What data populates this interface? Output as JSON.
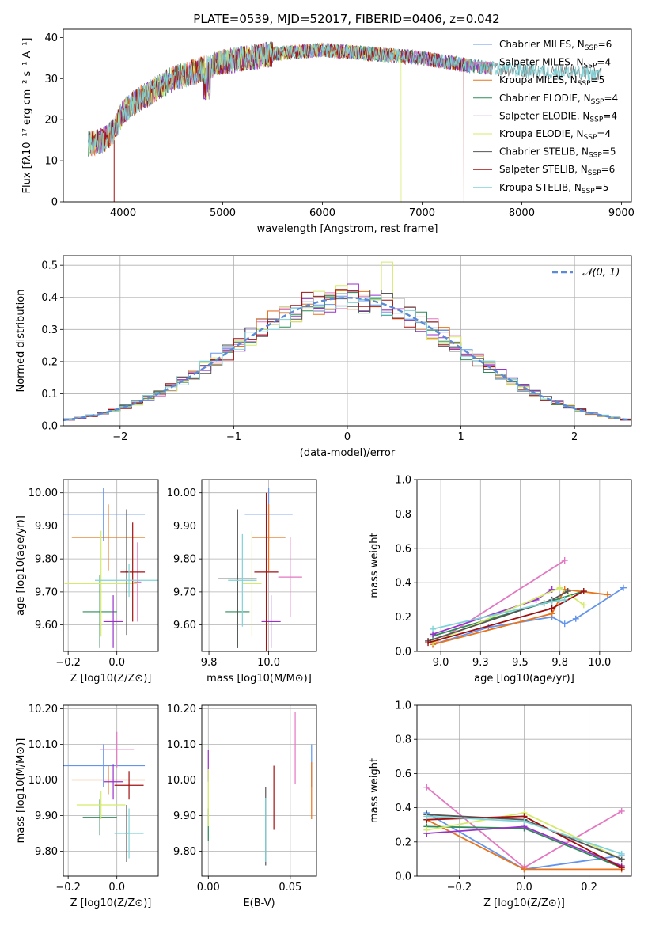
{
  "title": "PLATE=0539, MJD=52017, FIBERID=0406, z=0.042",
  "series_colors": [
    "#6495ed",
    "#e377c2",
    "#e8741c",
    "#2e8b57",
    "#9932cc",
    "#d4ea6b",
    "#555555",
    "#a01010",
    "#7fd3d8"
  ],
  "chart_data": [
    {
      "type": "line",
      "panel": "spectrum",
      "xlabel": "wavelength [Angstrom, rest frame]",
      "ylabel": "Flux [fλ10⁻¹⁷ erg cm⁻² s⁻¹ A⁻¹]",
      "xlim": [
        3400,
        9100
      ],
      "ylim": [
        0,
        42
      ],
      "xticks": [
        4000,
        5000,
        6000,
        7000,
        8000,
        9000
      ],
      "yticks": [
        0,
        10,
        20,
        30,
        40
      ],
      "continuum": {
        "x": [
          3650,
          3800,
          3900,
          4000,
          4100,
          4300,
          4500,
          4700,
          5000,
          5500,
          6000,
          6500,
          7000,
          7500,
          8000,
          8500,
          8800
        ],
        "y": [
          14,
          15,
          17,
          22,
          24,
          27,
          30,
          31.5,
          34,
          36,
          37,
          36,
          35,
          33,
          32,
          31.5,
          31
        ]
      },
      "drops": [
        {
          "series": 5,
          "x": 6790
        },
        {
          "series": 7,
          "x": 7420
        },
        {
          "series": 7,
          "x": 3910
        }
      ],
      "legend": [
        "Chabrier MILES, N_SSP=6",
        "Salpeter MILES, N_SSP=4",
        "Kroupa MILES, N_SSP=5",
        "Chabrier ELODIE, N_SSP=4",
        "Salpeter ELODIE, N_SSP=4",
        "Kroupa ELODIE, N_SSP=4",
        "Chabrier STELIB, N_SSP=5",
        "Salpeter STELIB, N_SSP=6",
        "Kroupa STELIB, N_SSP=5"
      ]
    },
    {
      "type": "histogram",
      "panel": "residuals",
      "xlabel": "(data-model)/error",
      "ylabel": "Normed distribution",
      "xlim": [
        -2.5,
        2.5
      ],
      "ylim": [
        0,
        0.53
      ],
      "xticks": [
        -2,
        -1,
        0,
        1,
        2
      ],
      "yticks": [
        0.0,
        0.1,
        0.2,
        0.3,
        0.4,
        0.5
      ],
      "bin_width": 0.1,
      "legend": [
        "𝒩(0, 1)"
      ],
      "gaussian": {
        "mean": 0,
        "sigma": 1
      }
    },
    {
      "type": "errorbar",
      "panel": "age-vs-Z",
      "xlabel": "Z [log10(Z/Z⊙)]",
      "ylabel": "age  [log10(age/yr)]",
      "xlim": [
        -0.22,
        0.17
      ],
      "ylim": [
        9.52,
        10.04
      ],
      "xticks": [
        -0.2,
        0.0
      ],
      "yticks": [
        9.6,
        9.7,
        9.8,
        9.9,
        10.0
      ],
      "points": [
        {
          "x": -0.055,
          "xerr": 0.17,
          "y": 9.935,
          "yerr": 0.08
        },
        {
          "x": 0.085,
          "xerr": 0.015,
          "y": 9.73,
          "yerr": 0.12
        },
        {
          "x": -0.035,
          "xerr": 0.15,
          "y": 9.865,
          "yerr": 0.1
        },
        {
          "x": -0.07,
          "xerr": 0.07,
          "y": 9.64,
          "yerr": 0.11
        },
        {
          "x": -0.015,
          "xerr": 0.04,
          "y": 9.61,
          "yerr": 0.08
        },
        {
          "x": -0.065,
          "xerr": 0.15,
          "y": 9.725,
          "yerr": 0.16
        },
        {
          "x": 0.04,
          "xerr": 0.006,
          "y": 9.76,
          "yerr": 0.19
        },
        {
          "x": 0.065,
          "xerr": 0.05,
          "y": 9.76,
          "yerr": 0.15
        },
        {
          "x": 0.05,
          "xerr": 0.14,
          "y": 9.735,
          "yerr": 0.05
        }
      ]
    },
    {
      "type": "errorbar",
      "panel": "age-vs-mass",
      "xlabel": "mass [log10(M/M⊙)]",
      "ylabel": "",
      "xlim": [
        9.72,
        10.2
      ],
      "ylim": [
        9.52,
        10.04
      ],
      "xticks": [
        9.75,
        10.0
      ],
      "yticks": [
        9.6,
        9.7,
        9.8,
        9.9,
        10.0
      ],
      "points": [
        {
          "x": 10.0,
          "xerr": 0.1,
          "y": 9.935,
          "yerr": 0.08
        },
        {
          "x": 10.09,
          "xerr": 0.05,
          "y": 9.745,
          "yerr": 0.12
        },
        {
          "x": 10.0,
          "xerr": 0.07,
          "y": 9.865,
          "yerr": 0.1
        },
        {
          "x": 9.87,
          "xerr": 0.05,
          "y": 9.64,
          "yerr": 0.11
        },
        {
          "x": 10.01,
          "xerr": 0.04,
          "y": 9.61,
          "yerr": 0.08
        },
        {
          "x": 9.93,
          "xerr": 0.04,
          "y": 9.725,
          "yerr": 0.16
        },
        {
          "x": 9.87,
          "xerr": 0.08,
          "y": 9.74,
          "yerr": 0.21
        },
        {
          "x": 9.99,
          "xerr": 0.05,
          "y": 9.76,
          "yerr": 0.24
        },
        {
          "x": 9.89,
          "xerr": 0.06,
          "y": 9.735,
          "yerr": 0.14
        }
      ]
    },
    {
      "type": "line",
      "panel": "weight-vs-age",
      "xlabel": "age  [log10(age/yr)]",
      "ylabel": "mass weight",
      "xlim": [
        8.85,
        10.2
      ],
      "ylim": [
        0,
        1
      ],
      "xticks": [
        9.0,
        9.25,
        9.5,
        9.75,
        10.0
      ],
      "yticks": [
        0.0,
        0.2,
        0.4,
        0.6,
        0.8,
        1.0
      ],
      "series": [
        {
          "x": [
            8.95,
            9.3,
            9.7,
            9.78,
            9.85,
            10.15
          ],
          "y": [
            0.04,
            0.14,
            0.2,
            0.16,
            0.19,
            0.37
          ]
        },
        {
          "x": [
            8.95,
            9.78,
            8.95
          ],
          "y": [
            0.04,
            0.53,
            0.04
          ]
        },
        {
          "x": [
            8.95,
            9.7,
            9.78,
            10.05
          ],
          "y": [
            0.04,
            0.22,
            0.36,
            0.33
          ]
        },
        {
          "x": [
            8.95,
            9.65,
            9.9
          ],
          "y": [
            0.09,
            0.28,
            0.35
          ]
        },
        {
          "x": [
            8.95,
            9.6,
            9.7
          ],
          "y": [
            0.1,
            0.3,
            0.36
          ]
        },
        {
          "x": [
            8.95,
            9.75,
            9.9
          ],
          "y": [
            0.05,
            0.37,
            0.27
          ]
        },
        {
          "x": [
            8.92,
            9.7,
            9.8
          ],
          "y": [
            0.06,
            0.3,
            0.35
          ]
        },
        {
          "x": [
            8.92,
            9.7,
            9.9
          ],
          "y": [
            0.05,
            0.25,
            0.35
          ]
        },
        {
          "x": [
            8.95,
            9.7,
            9.78
          ],
          "y": [
            0.13,
            0.29,
            0.3
          ]
        }
      ]
    },
    {
      "type": "errorbar",
      "panel": "mass-vs-Z",
      "xlabel": "Z [log10(Z/Z⊙)]",
      "ylabel": "mass [log10(M/M⊙)]",
      "xlim": [
        -0.22,
        0.17
      ],
      "ylim": [
        9.73,
        10.21
      ],
      "xticks": [
        -0.2,
        0.0
      ],
      "yticks": [
        9.8,
        9.9,
        10.0,
        10.1,
        10.2
      ],
      "points": [
        {
          "x": -0.055,
          "xerr": 0.17,
          "y": 10.04,
          "yerr": 0.06
        },
        {
          "x": 0.0,
          "xerr": 0.07,
          "y": 10.085,
          "yerr": 0.05
        },
        {
          "x": -0.035,
          "xerr": 0.15,
          "y": 10.0,
          "yerr": 0.04
        },
        {
          "x": -0.07,
          "xerr": 0.07,
          "y": 9.895,
          "yerr": 0.05
        },
        {
          "x": -0.015,
          "xerr": 0.04,
          "y": 9.995,
          "yerr": 0.05
        },
        {
          "x": -0.065,
          "xerr": 0.1,
          "y": 9.93,
          "yerr": 0.04
        },
        {
          "x": 0.04,
          "xerr": 0.006,
          "y": 9.85,
          "yerr": 0.08
        },
        {
          "x": 0.05,
          "xerr": 0.06,
          "y": 9.985,
          "yerr": 0.04
        },
        {
          "x": 0.05,
          "xerr": 0.06,
          "y": 9.85,
          "yerr": 0.07
        }
      ]
    },
    {
      "type": "errorbar",
      "panel": "mass-vs-EBV",
      "xlabel": "E(B-V)",
      "ylabel": "",
      "xlim": [
        -0.004,
        0.066
      ],
      "ylim": [
        9.73,
        10.21
      ],
      "xticks": [
        0.0,
        0.05
      ],
      "yticks": [
        9.8,
        9.9,
        10.0,
        10.1,
        10.2
      ],
      "points": [
        {
          "x": 0.063,
          "y": 10.04,
          "yerr": 0.06
        },
        {
          "x": 0.053,
          "y": 10.09,
          "yerr": 0.1
        },
        {
          "x": 0.063,
          "y": 9.97,
          "yerr": 0.08
        },
        {
          "x": 0.0,
          "y": 9.875,
          "yerr": 0.045
        },
        {
          "x": 0.0,
          "y": 10.04,
          "yerr": 0.045
        },
        {
          "x": 0.0,
          "y": 9.95,
          "yerr": 0.08
        },
        {
          "x": 0.035,
          "y": 9.87,
          "yerr": 0.11
        },
        {
          "x": 0.04,
          "y": 9.95,
          "yerr": 0.09
        },
        {
          "x": 0.035,
          "y": 9.86,
          "yerr": 0.09
        }
      ]
    },
    {
      "type": "line",
      "panel": "weight-vs-Z",
      "xlabel": "Z [log10(Z/Z⊙)]",
      "ylabel": "mass weight",
      "xlim": [
        -0.33,
        0.33
      ],
      "ylim": [
        0,
        1
      ],
      "xticks": [
        -0.2,
        0.0,
        0.2
      ],
      "yticks": [
        0.0,
        0.2,
        0.4,
        0.6,
        0.8,
        1.0
      ],
      "series": [
        {
          "x": [
            -0.3,
            0.0,
            0.3
          ],
          "y": [
            0.37,
            0.04,
            0.12
          ]
        },
        {
          "x": [
            -0.3,
            0.0,
            0.3
          ],
          "y": [
            0.52,
            0.05,
            0.38
          ]
        },
        {
          "x": [
            -0.3,
            0.0,
            0.3
          ],
          "y": [
            0.33,
            0.04,
            0.04
          ]
        },
        {
          "x": [
            -0.3,
            0.0,
            0.3
          ],
          "y": [
            0.29,
            0.28,
            0.05
          ]
        },
        {
          "x": [
            -0.3,
            0.0,
            0.3
          ],
          "y": [
            0.25,
            0.29,
            0.06
          ]
        },
        {
          "x": [
            -0.3,
            0.0,
            0.3
          ],
          "y": [
            0.27,
            0.37,
            0.1
          ]
        },
        {
          "x": [
            -0.3,
            0.0,
            0.3
          ],
          "y": [
            0.36,
            0.33,
            0.1
          ]
        },
        {
          "x": [
            -0.3,
            0.0,
            0.3
          ],
          "y": [
            0.33,
            0.35,
            0.05
          ]
        },
        {
          "x": [
            -0.3,
            0.0,
            0.3
          ],
          "y": [
            0.35,
            0.32,
            0.13
          ]
        }
      ]
    }
  ]
}
